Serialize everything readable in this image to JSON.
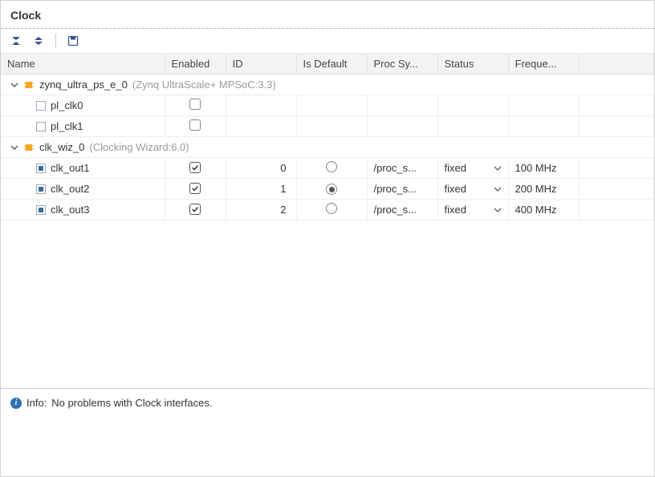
{
  "title": "Clock",
  "columns": [
    "Name",
    "Enabled",
    "ID",
    "Is Default",
    "Proc Sy...",
    "Status",
    "Freque..."
  ],
  "toolbar": {
    "collapse_all": "collapse-all",
    "expand_all": "expand-all",
    "save": "save"
  },
  "groups": [
    {
      "name": "zynq_ultra_ps_e_0",
      "desc": "(Zynq UltraScale+ MPSoC:3.3)",
      "expanded": true,
      "children": [
        {
          "name": "pl_clk0",
          "connected": false,
          "enabled": false,
          "id": "",
          "is_default": null,
          "proc": "",
          "status": "",
          "freq": ""
        },
        {
          "name": "pl_clk1",
          "connected": false,
          "enabled": false,
          "id": "",
          "is_default": null,
          "proc": "",
          "status": "",
          "freq": ""
        }
      ]
    },
    {
      "name": "clk_wiz_0",
      "desc": "(Clocking Wizard:6.0)",
      "expanded": true,
      "children": [
        {
          "name": "clk_out1",
          "connected": true,
          "enabled": true,
          "id": "0",
          "is_default": false,
          "proc": "/proc_s...",
          "status": "fixed",
          "freq": "100 MHz"
        },
        {
          "name": "clk_out2",
          "connected": true,
          "enabled": true,
          "id": "1",
          "is_default": true,
          "proc": "/proc_s...",
          "status": "fixed",
          "freq": "200 MHz"
        },
        {
          "name": "clk_out3",
          "connected": true,
          "enabled": true,
          "id": "2",
          "is_default": false,
          "proc": "/proc_s...",
          "status": "fixed",
          "freq": "400 MHz"
        }
      ]
    }
  ],
  "info": {
    "prefix": "Info:",
    "message": "No problems with Clock interfaces."
  },
  "colors": {
    "icon_blue": "#33548f",
    "ip_orange": "#f5a623"
  }
}
